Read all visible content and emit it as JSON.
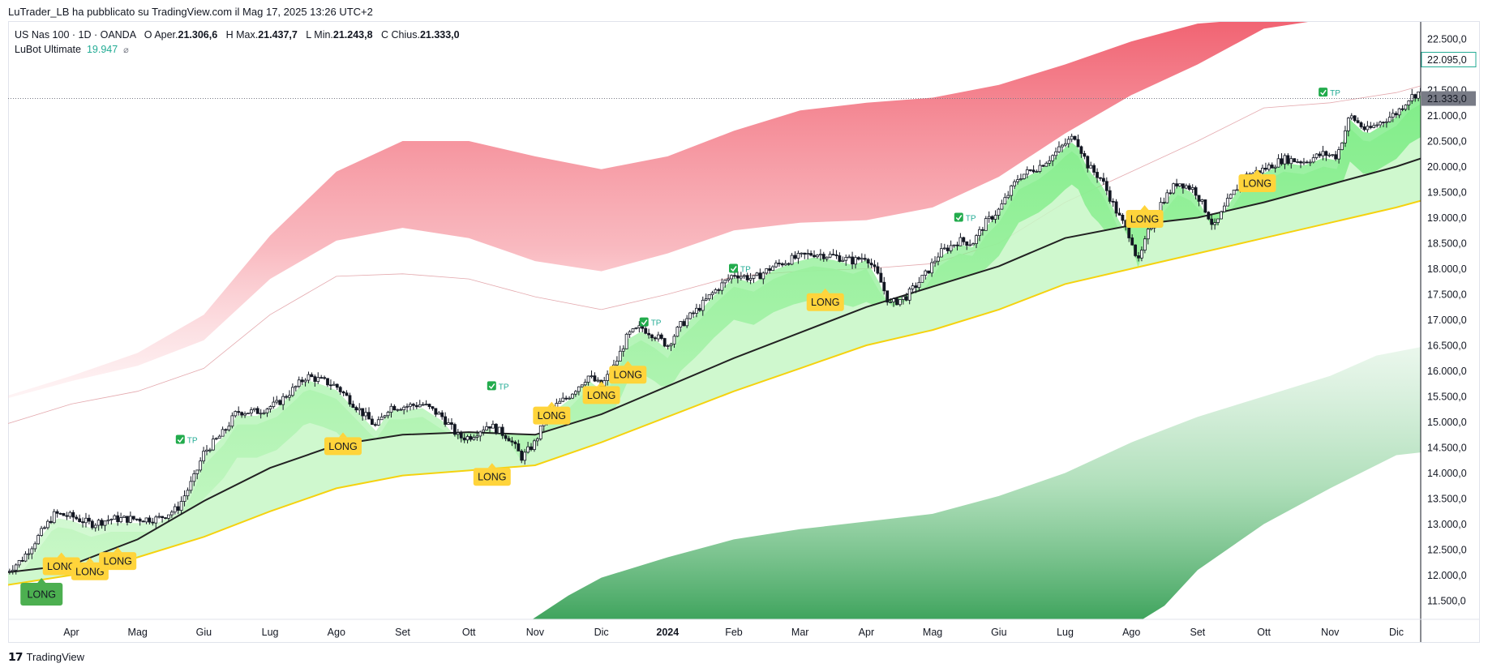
{
  "header": {
    "publisher": "LuTrader_LB ha pubblicato su TradingView.com il Mag 17, 2025 13:26 UTC+2"
  },
  "legend": {
    "symbol": "US Nas 100 · 1D · OANDA",
    "o_label": "O",
    "o_key": "Aper.",
    "o_val": "21.306,6",
    "h_label": "H",
    "h_key": "Max.",
    "h_val": "21.437,7",
    "l_label": "L",
    "l_key": "Min.",
    "l_val": "21.243,8",
    "c_label": "C",
    "c_key": "Chius.",
    "c_val": "21.333,0",
    "indicator_name": "LuBot Ultimate",
    "indicator_value": "19.947"
  },
  "brand": {
    "name": "TradingView",
    "icon": "tradingview-logo-icon"
  },
  "colors": {
    "up": "#089981",
    "candle": "#131722",
    "upper_band": "#f05a6a",
    "lower_band": "#3ea35e",
    "cloud": "#7cf07a",
    "cloud_light": "#c7f7c5",
    "ma_black": "#222222",
    "ma_yellow": "#f5d20f",
    "signal": "#ffd43b",
    "long_dark": "#4caf50",
    "stop_red": "#f23645",
    "last_price": "#787b86",
    "live_price": "#22ab94"
  },
  "chart_data": {
    "type": "candlestick",
    "ylim": [
      11000,
      22900
    ],
    "y_ticks": [
      {
        "value": 22500,
        "label": "22.500,0"
      },
      {
        "value": 21500,
        "label": "21.500,0"
      },
      {
        "value": 21000,
        "label": "21.000,0"
      },
      {
        "value": 20500,
        "label": "20.500,0"
      },
      {
        "value": 20000,
        "label": "20.000,0"
      },
      {
        "value": 19500,
        "label": "19.500,0"
      },
      {
        "value": 19000,
        "label": "19.000,0"
      },
      {
        "value": 18500,
        "label": "18.500,0"
      },
      {
        "value": 18000,
        "label": "18.000,0"
      },
      {
        "value": 17500,
        "label": "17.500,0"
      },
      {
        "value": 17000,
        "label": "17.000,0"
      },
      {
        "value": 16500,
        "label": "16.500,0"
      },
      {
        "value": 16000,
        "label": "16.000,0"
      },
      {
        "value": 15500,
        "label": "15.500,0"
      },
      {
        "value": 15000,
        "label": "15.000,0"
      },
      {
        "value": 14500,
        "label": "14.500,0"
      },
      {
        "value": 14000,
        "label": "14.000,0"
      },
      {
        "value": 13500,
        "label": "13.500,0"
      },
      {
        "value": 13000,
        "label": "13.000,0"
      },
      {
        "value": 12500,
        "label": "12.500,0"
      },
      {
        "value": 12000,
        "label": "12.000,0"
      },
      {
        "value": 11500,
        "label": "11.500,0"
      }
    ],
    "x_ticks": [
      {
        "t": 1.0,
        "label": "Apr",
        "bold": false
      },
      {
        "t": 2.0,
        "label": "Mag",
        "bold": false
      },
      {
        "t": 3.0,
        "label": "Giu",
        "bold": false
      },
      {
        "t": 4.0,
        "label": "Lug",
        "bold": false
      },
      {
        "t": 5.0,
        "label": "Ago",
        "bold": false
      },
      {
        "t": 6.0,
        "label": "Set",
        "bold": false
      },
      {
        "t": 7.0,
        "label": "Ott",
        "bold": false
      },
      {
        "t": 8.0,
        "label": "Nov",
        "bold": false
      },
      {
        "t": 9.0,
        "label": "Dic",
        "bold": false
      },
      {
        "t": 10.0,
        "label": "2024",
        "bold": true
      },
      {
        "t": 11.0,
        "label": "Feb",
        "bold": false
      },
      {
        "t": 12.0,
        "label": "Mar",
        "bold": false
      },
      {
        "t": 13.0,
        "label": "Apr",
        "bold": false
      },
      {
        "t": 14.0,
        "label": "Mag",
        "bold": false
      },
      {
        "t": 15.0,
        "label": "Giu",
        "bold": false
      },
      {
        "t": 16.0,
        "label": "Lug",
        "bold": false
      },
      {
        "t": 17.0,
        "label": "Ago",
        "bold": false
      },
      {
        "t": 18.0,
        "label": "Set",
        "bold": false
      },
      {
        "t": 19.0,
        "label": "Ott",
        "bold": false
      },
      {
        "t": 20.0,
        "label": "Nov",
        "bold": false
      },
      {
        "t": 21.0,
        "label": "Dic",
        "bold": false
      }
    ],
    "last_price": {
      "value": 21333,
      "label": "21.333,0"
    },
    "live_price": {
      "value": 22095,
      "label": "22.095,0"
    },
    "price_path": [
      [
        0.0,
        12050
      ],
      [
        0.25,
        12300
      ],
      [
        0.5,
        12750
      ],
      [
        0.75,
        13200
      ],
      [
        1.0,
        13150
      ],
      [
        1.3,
        13000
      ],
      [
        1.6,
        13100
      ],
      [
        2.0,
        13100
      ],
      [
        2.3,
        13100
      ],
      [
        2.6,
        13300
      ],
      [
        2.85,
        13900
      ],
      [
        3.0,
        14400
      ],
      [
        3.3,
        14800
      ],
      [
        3.5,
        15200
      ],
      [
        3.8,
        15200
      ],
      [
        4.1,
        15350
      ],
      [
        4.4,
        15700
      ],
      [
        4.55,
        15900
      ],
      [
        4.8,
        15800
      ],
      [
        5.0,
        15700
      ],
      [
        5.3,
        15300
      ],
      [
        5.6,
        14900
      ],
      [
        5.8,
        15300
      ],
      [
        6.0,
        15300
      ],
      [
        6.3,
        15350
      ],
      [
        6.6,
        15100
      ],
      [
        6.85,
        14700
      ],
      [
        7.0,
        14700
      ],
      [
        7.3,
        14950
      ],
      [
        7.6,
        14700
      ],
      [
        7.8,
        14300
      ],
      [
        8.0,
        14600
      ],
      [
        8.2,
        15200
      ],
      [
        8.5,
        15500
      ],
      [
        8.8,
        15900
      ],
      [
        9.0,
        15700
      ],
      [
        9.2,
        16100
      ],
      [
        9.4,
        16700
      ],
      [
        9.6,
        16850
      ],
      [
        9.8,
        16700
      ],
      [
        10.0,
        16500
      ],
      [
        10.2,
        16900
      ],
      [
        10.45,
        17200
      ],
      [
        10.7,
        17550
      ],
      [
        11.0,
        17900
      ],
      [
        11.3,
        17800
      ],
      [
        11.6,
        18050
      ],
      [
        11.9,
        18200
      ],
      [
        12.2,
        18300
      ],
      [
        12.5,
        18250
      ],
      [
        12.8,
        18150
      ],
      [
        13.0,
        18250
      ],
      [
        13.2,
        17800
      ],
      [
        13.35,
        17300
      ],
      [
        13.6,
        17450
      ],
      [
        13.9,
        17900
      ],
      [
        14.1,
        18300
      ],
      [
        14.4,
        18550
      ],
      [
        14.6,
        18500
      ],
      [
        14.8,
        18900
      ],
      [
        15.0,
        19150
      ],
      [
        15.3,
        19800
      ],
      [
        15.6,
        20000
      ],
      [
        15.8,
        20200
      ],
      [
        16.0,
        20450
      ],
      [
        16.15,
        20600
      ],
      [
        16.35,
        20000
      ],
      [
        16.55,
        19750
      ],
      [
        16.8,
        19050
      ],
      [
        17.0,
        18600
      ],
      [
        17.1,
        18100
      ],
      [
        17.25,
        18700
      ],
      [
        17.45,
        19300
      ],
      [
        17.7,
        19700
      ],
      [
        17.95,
        19550
      ],
      [
        18.1,
        19200
      ],
      [
        18.25,
        18800
      ],
      [
        18.45,
        19300
      ],
      [
        18.7,
        19800
      ],
      [
        19.0,
        19950
      ],
      [
        19.3,
        20150
      ],
      [
        19.6,
        20100
      ],
      [
        19.9,
        20250
      ],
      [
        20.1,
        20200
      ],
      [
        20.2,
        20600
      ],
      [
        20.3,
        21000
      ],
      [
        20.55,
        20700
      ],
      [
        20.8,
        20900
      ],
      [
        21.0,
        21050
      ],
      [
        21.2,
        21350
      ],
      [
        21.4,
        21500
      ],
      [
        21.5,
        21650
      ],
      [
        21.6,
        21800
      ],
      [
        21.7,
        22000
      ]
    ],
    "upper_band": {
      "lower_edge": [
        [
          0.0,
          14950
        ],
        [
          1.0,
          15350
        ],
        [
          2.0,
          15600
        ],
        [
          3.0,
          16050
        ],
        [
          4.0,
          17100
        ],
        [
          5.0,
          17850
        ],
        [
          6.0,
          17900
        ],
        [
          7.0,
          17800
        ],
        [
          8.0,
          17450
        ],
        [
          9.0,
          17200
        ],
        [
          10.0,
          17500
        ],
        [
          11.0,
          17850
        ],
        [
          12.0,
          17950
        ],
        [
          13.0,
          18000
        ],
        [
          14.0,
          18100
        ],
        [
          15.0,
          18500
        ],
        [
          16.0,
          19300
        ],
        [
          17.0,
          19900
        ],
        [
          18.0,
          20500
        ],
        [
          19.0,
          21150
        ],
        [
          20.0,
          21250
        ],
        [
          21.0,
          21450
        ],
        [
          21.7,
          21700
        ]
      ],
      "upper_edge": [
        [
          0.0,
          15450
        ],
        [
          1.0,
          15800
        ],
        [
          2.0,
          16100
        ],
        [
          3.0,
          16600
        ],
        [
          4.0,
          17800
        ],
        [
          5.0,
          18550
        ],
        [
          6.0,
          18800
        ],
        [
          7.0,
          18600
        ],
        [
          8.0,
          18150
        ],
        [
          9.0,
          17950
        ],
        [
          10.0,
          18300
        ],
        [
          11.0,
          18750
        ],
        [
          12.0,
          18900
        ],
        [
          13.0,
          18950
        ],
        [
          14.0,
          19200
        ],
        [
          15.0,
          19800
        ],
        [
          16.0,
          20650
        ],
        [
          17.0,
          21400
        ],
        [
          18.0,
          22000
        ],
        [
          19.0,
          22700
        ],
        [
          20.0,
          22900
        ],
        [
          21.0,
          22900
        ],
        [
          21.7,
          22900
        ]
      ],
      "top": [
        [
          0.0,
          15500
        ],
        [
          1.0,
          15900
        ],
        [
          2.0,
          16350
        ],
        [
          3.0,
          17100
        ],
        [
          4.0,
          18650
        ],
        [
          5.0,
          19900
        ],
        [
          6.0,
          20500
        ],
        [
          7.0,
          20500
        ],
        [
          8.0,
          20200
        ],
        [
          9.0,
          19950
        ],
        [
          10.0,
          20200
        ],
        [
          11.0,
          20700
        ],
        [
          12.0,
          21100
        ],
        [
          13.0,
          21250
        ],
        [
          14.0,
          21350
        ],
        [
          15.0,
          21600
        ],
        [
          16.0,
          22000
        ],
        [
          17.0,
          22450
        ],
        [
          18.0,
          22800
        ],
        [
          19.0,
          22900
        ],
        [
          20.0,
          22900
        ],
        [
          21.0,
          22900
        ],
        [
          21.7,
          22900
        ]
      ]
    },
    "lower_band": {
      "top": [
        [
          7.8,
          11000
        ],
        [
          8.5,
          11600
        ],
        [
          9.0,
          11950
        ],
        [
          10.0,
          12350
        ],
        [
          11.0,
          12700
        ],
        [
          12.0,
          12900
        ],
        [
          13.0,
          13050
        ],
        [
          14.0,
          13200
        ],
        [
          15.0,
          13550
        ],
        [
          16.0,
          14000
        ],
        [
          17.0,
          14600
        ],
        [
          18.0,
          15100
        ],
        [
          19.0,
          15500
        ],
        [
          20.0,
          15900
        ],
        [
          20.7,
          16300
        ],
        [
          21.7,
          16550
        ]
      ],
      "bottom": [
        [
          7.8,
          11000
        ],
        [
          10.0,
          11000
        ],
        [
          12.0,
          11000
        ],
        [
          14.0,
          11000
        ],
        [
          15.0,
          11000
        ],
        [
          16.0,
          11000
        ],
        [
          17.0,
          11000
        ],
        [
          17.5,
          11400
        ],
        [
          18.0,
          12100
        ],
        [
          19.0,
          13000
        ],
        [
          20.0,
          13700
        ],
        [
          21.0,
          14350
        ],
        [
          21.7,
          14450
        ]
      ]
    },
    "ma_black": [
      [
        0.0,
        12050
      ],
      [
        1.0,
        12200
      ],
      [
        2.0,
        12700
      ],
      [
        3.0,
        13450
      ],
      [
        4.0,
        14100
      ],
      [
        5.0,
        14550
      ],
      [
        6.0,
        14750
      ],
      [
        7.0,
        14800
      ],
      [
        8.0,
        14750
      ],
      [
        9.0,
        15150
      ],
      [
        10.0,
        15700
      ],
      [
        11.0,
        16250
      ],
      [
        12.0,
        16750
      ],
      [
        13.0,
        17250
      ],
      [
        14.0,
        17650
      ],
      [
        15.0,
        18050
      ],
      [
        16.0,
        18600
      ],
      [
        17.0,
        18850
      ],
      [
        18.0,
        19000
      ],
      [
        19.0,
        19300
      ],
      [
        20.0,
        19650
      ],
      [
        21.0,
        20000
      ],
      [
        21.7,
        20300
      ]
    ],
    "ma_yellow": [
      [
        0.0,
        11800
      ],
      [
        1.0,
        12000
      ],
      [
        2.0,
        12350
      ],
      [
        3.0,
        12750
      ],
      [
        4.0,
        13250
      ],
      [
        5.0,
        13700
      ],
      [
        6.0,
        13950
      ],
      [
        7.0,
        14050
      ],
      [
        8.0,
        14150
      ],
      [
        9.0,
        14600
      ],
      [
        10.0,
        15100
      ],
      [
        11.0,
        15600
      ],
      [
        12.0,
        16050
      ],
      [
        13.0,
        16500
      ],
      [
        14.0,
        16800
      ],
      [
        15.0,
        17200
      ],
      [
        16.0,
        17700
      ],
      [
        17.0,
        18000
      ],
      [
        18.0,
        18300
      ],
      [
        19.0,
        18600
      ],
      [
        20.0,
        18900
      ],
      [
        21.0,
        19200
      ],
      [
        21.7,
        19450
      ]
    ],
    "signals": [
      {
        "t": 0.85,
        "price": 12350,
        "label": "LONG",
        "style": "yellow"
      },
      {
        "t": 1.28,
        "price": 12250,
        "label": "LONG",
        "style": "yellow"
      },
      {
        "t": 1.7,
        "price": 12450,
        "label": "LONG",
        "style": "yellow"
      },
      {
        "t": 0.55,
        "price": 11850,
        "label": "LONG",
        "style": "green"
      },
      {
        "t": 5.1,
        "price": 14700,
        "label": "LONG",
        "style": "yellow"
      },
      {
        "t": 7.35,
        "price": 14100,
        "label": "LONG",
        "style": "yellow"
      },
      {
        "t": 8.25,
        "price": 15300,
        "label": "LONG",
        "style": "yellow"
      },
      {
        "t": 9.0,
        "price": 15700,
        "label": "LONG",
        "style": "yellow"
      },
      {
        "t": 9.4,
        "price": 16100,
        "label": "LONG",
        "style": "yellow"
      },
      {
        "t": 12.38,
        "price": 17520,
        "label": "LONG",
        "style": "yellow"
      },
      {
        "t": 17.2,
        "price": 19150,
        "label": "LONG",
        "style": "yellow"
      },
      {
        "t": 18.9,
        "price": 19850,
        "label": "LONG",
        "style": "yellow"
      }
    ],
    "tp_labels": [
      {
        "t": 2.65,
        "price": 14650,
        "label": "TP"
      },
      {
        "t": 7.35,
        "price": 15700,
        "label": "TP"
      },
      {
        "t": 9.65,
        "price": 16950,
        "label": "TP"
      },
      {
        "t": 11.0,
        "price": 18000,
        "label": "TP"
      },
      {
        "t": 14.4,
        "price": 19000,
        "label": "TP"
      },
      {
        "t": 19.9,
        "price": 21450,
        "label": "TP"
      }
    ]
  }
}
